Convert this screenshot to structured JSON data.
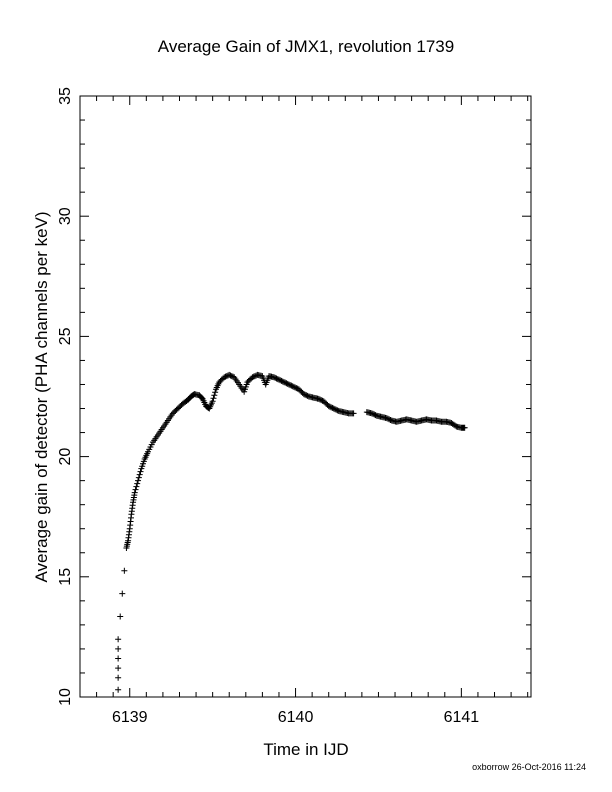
{
  "chart_data": {
    "type": "scatter",
    "title": "Average Gain of JMX1, revolution 1739",
    "xlabel": "Time in IJD",
    "ylabel": "Average gain of detector (PHA channels per keV)",
    "xlim": [
      6138.7,
      6141.42
    ],
    "ylim": [
      10,
      35
    ],
    "xticks": [
      6139,
      6140,
      6141
    ],
    "yticks": [
      10,
      15,
      20,
      25,
      30,
      35
    ],
    "marker": "+",
    "grid": false,
    "footer": "oxborrow 26-Oct-2016 11:24",
    "series": [
      {
        "marker": "+",
        "color": "#000000",
        "points": [
          [
            6138.93,
            10.3
          ],
          [
            6138.93,
            10.8
          ],
          [
            6138.93,
            11.2
          ],
          [
            6138.93,
            11.6
          ],
          [
            6138.93,
            12.0
          ],
          [
            6138.93,
            12.4
          ],
          [
            6138.98,
            16.2
          ],
          [
            6138.99,
            16.5
          ],
          [
            6139.0,
            17.0
          ],
          [
            6139.01,
            17.6
          ],
          [
            6139.02,
            18.1
          ],
          [
            6139.03,
            18.5
          ],
          [
            6139.05,
            19.0
          ],
          [
            6139.07,
            19.5
          ],
          [
            6139.09,
            19.9
          ],
          [
            6139.11,
            20.2
          ],
          [
            6139.14,
            20.6
          ],
          [
            6139.17,
            20.9
          ],
          [
            6139.2,
            21.2
          ],
          [
            6139.23,
            21.5
          ],
          [
            6139.26,
            21.8
          ],
          [
            6139.29,
            22.0
          ],
          [
            6139.32,
            22.2
          ],
          [
            6139.35,
            22.35
          ],
          [
            6139.37,
            22.5
          ],
          [
            6139.39,
            22.6
          ],
          [
            6139.42,
            22.55
          ],
          [
            6139.44,
            22.4
          ],
          [
            6139.46,
            22.1
          ],
          [
            6139.48,
            22.0
          ],
          [
            6139.5,
            22.3
          ],
          [
            6139.52,
            22.8
          ],
          [
            6139.54,
            23.1
          ],
          [
            6139.57,
            23.3
          ],
          [
            6139.6,
            23.4
          ],
          [
            6139.63,
            23.3
          ],
          [
            6139.66,
            23.0
          ],
          [
            6139.69,
            22.7
          ],
          [
            6139.71,
            23.1
          ],
          [
            6139.74,
            23.3
          ],
          [
            6139.77,
            23.4
          ],
          [
            6139.8,
            23.35
          ],
          [
            6139.82,
            23.0
          ],
          [
            6139.84,
            23.35
          ],
          [
            6139.87,
            23.3
          ],
          [
            6139.9,
            23.2
          ],
          [
            6139.93,
            23.1
          ],
          [
            6139.96,
            23.0
          ],
          [
            6139.99,
            22.9
          ],
          [
            6140.02,
            22.8
          ],
          [
            6140.05,
            22.6
          ],
          [
            6140.08,
            22.5
          ],
          [
            6140.11,
            22.45
          ],
          [
            6140.14,
            22.4
          ],
          [
            6140.17,
            22.3
          ],
          [
            6140.2,
            22.1
          ],
          [
            6140.23,
            22.0
          ],
          [
            6140.26,
            21.9
          ],
          [
            6140.29,
            21.85
          ],
          [
            6140.32,
            21.8
          ],
          [
            6140.35,
            21.8
          ],
          [
            6140.43,
            21.85
          ],
          [
            6140.46,
            21.8
          ],
          [
            6140.49,
            21.7
          ],
          [
            6140.52,
            21.65
          ],
          [
            6140.55,
            21.6
          ],
          [
            6140.58,
            21.5
          ],
          [
            6140.61,
            21.45
          ],
          [
            6140.64,
            21.5
          ],
          [
            6140.67,
            21.55
          ],
          [
            6140.7,
            21.5
          ],
          [
            6140.73,
            21.45
          ],
          [
            6140.76,
            21.5
          ],
          [
            6140.79,
            21.55
          ],
          [
            6140.82,
            21.5
          ],
          [
            6140.85,
            21.5
          ],
          [
            6140.88,
            21.45
          ],
          [
            6140.91,
            21.45
          ],
          [
            6140.94,
            21.4
          ],
          [
            6140.97,
            21.25
          ],
          [
            6141.0,
            21.2
          ],
          [
            6141.02,
            21.2
          ]
        ]
      }
    ]
  }
}
